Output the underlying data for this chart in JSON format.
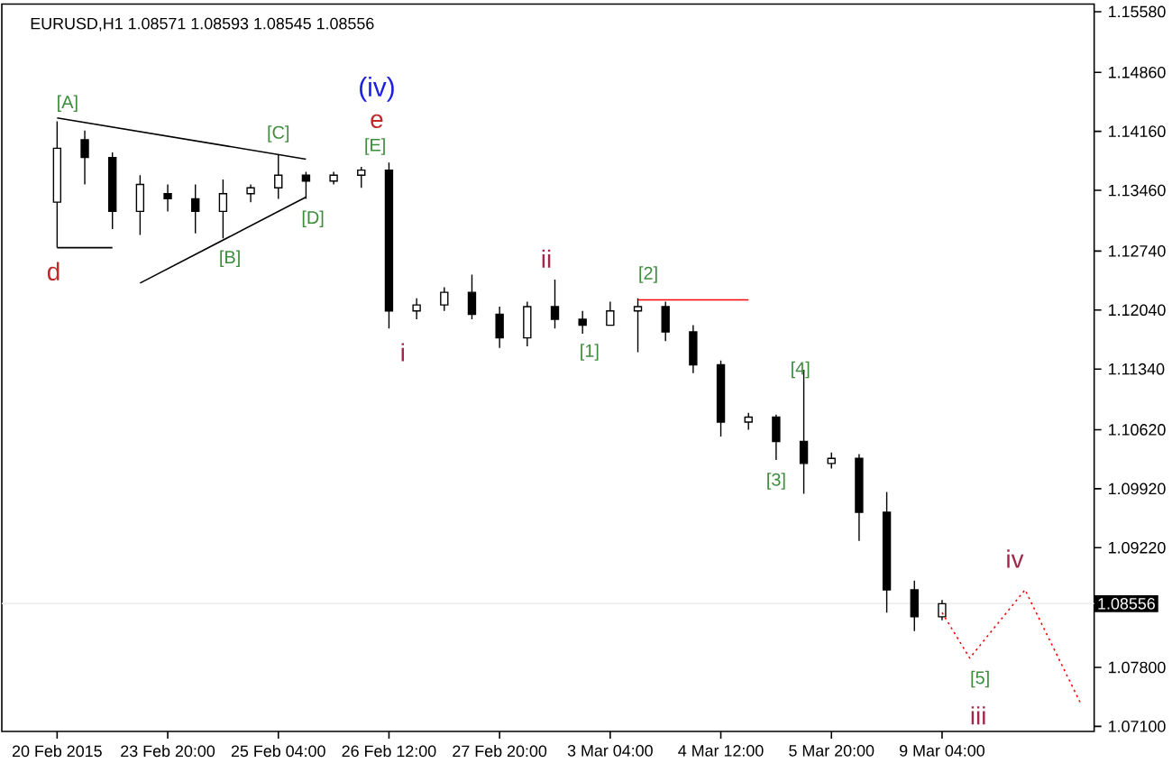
{
  "chart_data": {
    "type": "candlestick",
    "title": "EURUSD,H1  1.08571 1.08593 1.08545 1.08556",
    "categories": [
      "20 Feb 2015",
      null,
      null,
      null,
      "23 Feb 20:00",
      null,
      null,
      null,
      "25 Feb 04:00",
      null,
      null,
      null,
      "26 Feb 12:00",
      null,
      null,
      null,
      "27 Feb 20:00",
      null,
      null,
      null,
      "3 Mar 04:00",
      null,
      null,
      null,
      "4 Mar 12:00",
      null,
      null,
      null,
      "5 Mar 20:00",
      null,
      null,
      null,
      "9 Mar 04:00",
      null,
      null,
      null,
      null,
      null
    ],
    "ohlc": [
      [
        1.1332,
        1.1428,
        1.1278,
        1.1396
      ],
      [
        1.1406,
        1.1417,
        1.1353,
        1.1385
      ],
      [
        1.1385,
        1.1391,
        1.13,
        1.1321
      ],
      [
        1.1321,
        1.1364,
        1.1293,
        1.1353
      ],
      [
        1.1342,
        1.1353,
        1.1321,
        1.1336
      ],
      [
        1.1336,
        1.1353,
        1.1295,
        1.1321
      ],
      [
        1.1321,
        1.1359,
        1.1289,
        1.1342
      ],
      [
        1.1342,
        1.1353,
        1.1332,
        1.1349
      ],
      [
        1.1349,
        1.1389,
        1.1336,
        1.1364
      ],
      [
        1.1364,
        1.1368,
        1.1336,
        1.1357
      ],
      [
        1.1357,
        1.1368,
        1.1353,
        1.1364
      ],
      [
        1.1364,
        1.1374,
        1.1349,
        1.137
      ],
      [
        1.137,
        1.1379,
        1.1182,
        1.1203
      ],
      [
        1.1203,
        1.1218,
        1.1193,
        1.121
      ],
      [
        1.121,
        1.1231,
        1.1203,
        1.1225
      ],
      [
        1.1225,
        1.1246,
        1.1193,
        1.1199
      ],
      [
        1.1199,
        1.1208,
        1.1159,
        1.1171
      ],
      [
        1.1171,
        1.1214,
        1.1161,
        1.1208
      ],
      [
        1.1208,
        1.124,
        1.1182,
        1.1193
      ],
      [
        1.1193,
        1.1203,
        1.1176,
        1.1186
      ],
      [
        1.1186,
        1.1214,
        1.1186,
        1.1203
      ],
      [
        1.1203,
        1.1218,
        1.1154,
        1.1208
      ],
      [
        1.1208,
        1.1214,
        1.1167,
        1.1178
      ],
      [
        1.1178,
        1.1186,
        1.1129,
        1.1139
      ],
      [
        1.1139,
        1.1144,
        1.1054,
        1.1071
      ],
      [
        1.1071,
        1.1082,
        1.1062,
        1.1077
      ],
      [
        1.1077,
        1.108,
        1.1026,
        1.1048
      ],
      [
        1.1048,
        1.1133,
        1.0986,
        1.1022
      ],
      [
        1.1022,
        1.1035,
        1.1016,
        1.1028
      ],
      [
        1.1028,
        1.1033,
        1.093,
        1.0964
      ],
      [
        1.0964,
        1.0988,
        1.0845,
        1.0872
      ],
      [
        1.0872,
        1.0883,
        1.0823,
        1.084
      ],
      [
        1.084,
        1.086,
        1.0836,
        1.08556
      ],
      null,
      null,
      null,
      null,
      null
    ],
    "color": "#000000",
    "series": [
      {
        "type": "line",
        "color": "#000000",
        "values": [
          1.1432,
          null,
          null,
          null,
          null,
          null,
          null,
          null,
          null,
          1.1383,
          null,
          null,
          null,
          null,
          null,
          null,
          null,
          null,
          null,
          null,
          null,
          null,
          null,
          null,
          null,
          null,
          null,
          null,
          null,
          null,
          null,
          null,
          null,
          null,
          null,
          null,
          null,
          null
        ]
      },
      {
        "type": "line",
        "color": "#000000",
        "values": [
          null,
          null,
          null,
          1.1236,
          null,
          null,
          null,
          null,
          null,
          1.1338,
          null,
          null,
          null,
          null,
          null,
          null,
          null,
          null,
          null,
          null,
          null,
          null,
          null,
          null,
          null,
          null,
          null,
          null,
          null,
          null,
          null,
          null,
          null,
          null,
          null,
          null,
          null,
          null
        ]
      },
      {
        "type": "line",
        "color": "#000000",
        "values": [
          1.1278,
          null,
          1.1278,
          null,
          null,
          null,
          null,
          null,
          null,
          null,
          null,
          null,
          null,
          null,
          null,
          null,
          null,
          null,
          null,
          null,
          null,
          null,
          null,
          null,
          null,
          null,
          null,
          null,
          null,
          null,
          null,
          null,
          null,
          null,
          null,
          null,
          null,
          null
        ]
      },
      {
        "type": "line",
        "color": "#ff0000",
        "values": [
          null,
          null,
          null,
          null,
          null,
          null,
          null,
          null,
          null,
          null,
          null,
          null,
          null,
          null,
          null,
          null,
          null,
          null,
          null,
          null,
          null,
          1.1216,
          null,
          null,
          null,
          1.1216,
          null,
          null,
          null,
          null,
          null,
          null,
          null,
          null,
          null,
          null,
          null,
          null
        ]
      },
      {
        "type": "line",
        "color": "#ff0000",
        "line_style": "dotted",
        "values": [
          null,
          null,
          null,
          null,
          null,
          null,
          null,
          null,
          null,
          null,
          null,
          null,
          null,
          null,
          null,
          null,
          null,
          null,
          null,
          null,
          null,
          null,
          null,
          null,
          null,
          null,
          null,
          null,
          null,
          null,
          null,
          null,
          1.0845,
          1.0791,
          null,
          1.0872,
          null,
          1.0738
        ]
      }
    ],
    "ylim": [
      1.0704,
      1.1567
    ],
    "yticks": [
      {
        "value": 1.071,
        "label": "1.07100"
      },
      {
        "value": 1.078,
        "label": "1.07800"
      },
      {
        "value": 1.0922,
        "label": "1.09220"
      },
      {
        "value": 1.0992,
        "label": "1.09920"
      },
      {
        "value": 1.1062,
        "label": "1.10620"
      },
      {
        "value": 1.1134,
        "label": "1.11340"
      },
      {
        "value": 1.1204,
        "label": "1.12040"
      },
      {
        "value": 1.1274,
        "label": "1.12740"
      },
      {
        "value": 1.1346,
        "label": "1.13460"
      },
      {
        "value": 1.1416,
        "label": "1.14160"
      },
      {
        "value": 1.1486,
        "label": "1.14860"
      },
      {
        "value": 1.1558,
        "label": "1.15580"
      }
    ],
    "ref_lines": [
      {
        "axis": "y",
        "value": 1.08556,
        "label": "1.08556",
        "color": "#ececec"
      }
    ],
    "annotations": [
      "[A]",
      "(iv)",
      "e",
      "[E]",
      "[C]",
      "[D]",
      "[B]",
      "d",
      "i",
      "ii",
      "[1]",
      "[2]",
      "[4]",
      "[3]",
      "[5]",
      "iii",
      "iv"
    ]
  }
}
